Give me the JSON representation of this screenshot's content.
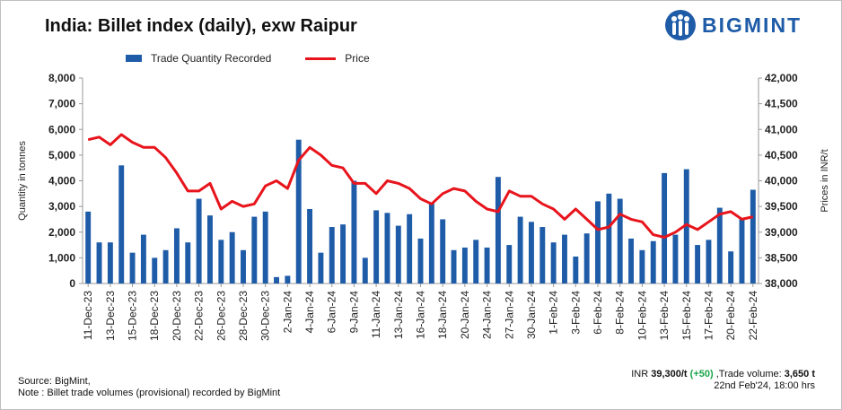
{
  "chart_data": {
    "type": "bar+line",
    "title": "India: Billet index (daily), exw Raipur",
    "legend": [
      "Trade Quantity Recorded",
      "Price"
    ],
    "ylabel_left": "Quantity in tonnes",
    "ylabel_right": "Prices in INR/t",
    "ylim_left": [
      0,
      8000
    ],
    "ylim_right": [
      38000,
      42000
    ],
    "yticks_left": [
      "0",
      "1,000",
      "2,000",
      "3,000",
      "4,000",
      "5,000",
      "6,000",
      "7,000",
      "8,000"
    ],
    "yticks_right": [
      "38,000",
      "38,500",
      "39,000",
      "39,500",
      "40,000",
      "40,500",
      "41,000",
      "41,500",
      "42,000"
    ],
    "xtick_labels": [
      "11-Dec-23",
      "13-Dec-23",
      "15-Dec-23",
      "18-Dec-23",
      "20-Dec-23",
      "22-Dec-23",
      "26-Dec-23",
      "28-Dec-23",
      "30-Dec-23",
      "2-Jan-24",
      "4-Jan-24",
      "6-Jan-24",
      "9-Jan-24",
      "11-Jan-24",
      "13-Jan-24",
      "16-Jan-24",
      "18-Jan-24",
      "20-Jan-24",
      "24-Jan-24",
      "27-Jan-24",
      "30-Jan-24",
      "1-Feb-24",
      "3-Feb-24",
      "6-Feb-24",
      "8-Feb-24",
      "10-Feb-24",
      "13-Feb-24",
      "15-Feb-24",
      "17-Feb-24",
      "20-Feb-24",
      "22-Feb-24"
    ],
    "quantity": [
      2800,
      1600,
      1600,
      4600,
      1200,
      1900,
      1000,
      1300,
      2150,
      1600,
      3300,
      2650,
      1700,
      2000,
      1300,
      2600,
      2800,
      250,
      300,
      5600,
      2900,
      1200,
      2200,
      2300,
      4000,
      1000,
      2850,
      2750,
      2250,
      2700,
      1750,
      3150,
      2500,
      1300,
      1400,
      1700,
      1400,
      4150,
      1500,
      2600,
      2400,
      2200,
      1600,
      1900,
      1050,
      1950,
      3200,
      3500,
      3300,
      1750,
      1300,
      1650,
      4300,
      1900,
      4450,
      1500,
      1700,
      2950,
      1250,
      2550,
      3650
    ],
    "price": [
      40800,
      40850,
      40700,
      40900,
      40750,
      40650,
      40650,
      40450,
      40150,
      39800,
      39800,
      39950,
      39450,
      39600,
      39500,
      39550,
      39900,
      40000,
      39850,
      40400,
      40650,
      40500,
      40300,
      40250,
      39950,
      39950,
      39750,
      40000,
      39950,
      39850,
      39650,
      39550,
      39750,
      39850,
      39800,
      39600,
      39450,
      39400,
      39800,
      39700,
      39700,
      39550,
      39450,
      39250,
      39450,
      39250,
      39050,
      39100,
      39350,
      39250,
      39200,
      38950,
      38900,
      39000,
      39150,
      39050,
      39200,
      39350,
      39400,
      39250,
      39300
    ]
  },
  "brand": {
    "name": "BIGMINT",
    "color": "#1f5ca8"
  },
  "colors": {
    "bar": "#1f5ca8",
    "line": "#e8141c"
  },
  "footer": {
    "source": "Source: BigMint,",
    "note": "Note : Billet trade volumes (provisional) recorded by BigMint",
    "inr_prefix": "INR ",
    "price": "39,300/t",
    "change": "(+50)",
    "volume_prefix": " ,Trade volume: ",
    "volume": "3,650 t",
    "timestamp": "22nd Feb'24, 18:00 hrs"
  }
}
